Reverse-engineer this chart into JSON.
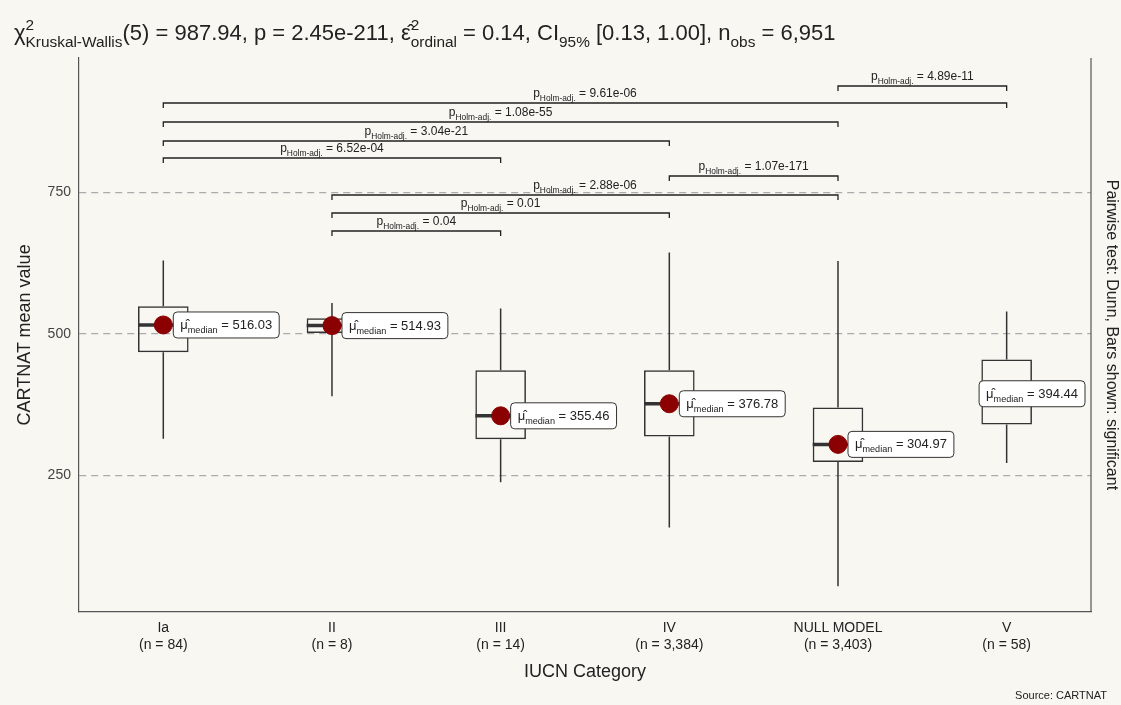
{
  "chart_data": {
    "type": "box",
    "title": "χ$^{2}$$_{Kruskal-Wallis}$(5) = 987.94, p = 2.45e-211, ε̂$^{2}$$_{ordinal}$ = 0.14, CI$_{95%}$ [0.13, 1.00], n$_{obs}$ = 6,951",
    "xlabel": "IUCN Category",
    "ylabel": "CARTNAT mean value",
    "categories": [
      "Ia\n(n = 84)",
      "II\n(n = 8)",
      "III\n(n = 14)",
      "IV\n(n = 3,384)",
      "NULL MODEL\n(n = 3,403)",
      "V\n(n = 58)"
    ],
    "series": [
      {
        "type": "box",
        "color": "#333333",
        "boxes": [
          {
            "low": 315,
            "q1": 468,
            "median": 516.03,
            "q3": 549,
            "high": 630
          },
          {
            "low": 390,
            "q1": 502,
            "median": 514.93,
            "q3": 528,
            "high": 555
          },
          {
            "low": 238,
            "q1": 314,
            "median": 355.46,
            "q3": 436,
            "high": 545
          },
          {
            "low": 158,
            "q1": 319,
            "median": 376.78,
            "q3": 436,
            "high": 644
          },
          {
            "low": 54,
            "q1": 274,
            "median": 304.97,
            "q3": 370,
            "high": 629
          },
          {
            "low": 272,
            "q1": 340,
            "median": 394.44,
            "q3": 455,
            "high": 540
          }
        ]
      },
      {
        "type": "scatter",
        "color": "#8b0000",
        "x": [
          "Ia\n(n = 84)",
          "II\n(n = 8)",
          "III\n(n = 14)",
          "IV\n(n = 3,384)",
          "NULL MODEL\n(n = 3,403)",
          "V\n(n = 58)"
        ],
        "values": [
          516.03,
          514.93,
          355.46,
          376.78,
          304.97,
          null
        ]
      }
    ],
    "ylim": [
      9,
      988
    ],
    "yticks": [
      250,
      500,
      750
    ],
    "grid": "y",
    "legend": false,
    "marker": "circle",
    "annotations": [
      "p$_{Holm-adj.}$ = 9.61e-06",
      "p$_{Holm-adj.}$ = 4.89e-11",
      "p$_{Holm-adj.}$ = 1.08e-55",
      "p$_{Holm-adj.}$ = 3.04e-21",
      "p$_{Holm-adj.}$ = 6.52e-04",
      "p$_{Holm-adj.}$ = 1.07e-171",
      "p$_{Holm-adj.}$ = 2.88e-06",
      "p$_{Holm-adj.}$ = 0.01",
      "p$_{Holm-adj.}$ = 0.04",
      "Pairwise test: Dunn, Bars shown: significant",
      "Source: CARTNAT",
      {
        "text": "μ̂$_{median}$ = 516.03",
        "x": "Ia\n(n = 84)",
        "y": 516.03
      },
      {
        "text": "μ̂$_{median}$ = 514.93",
        "x": "II\n(n = 8)",
        "y": 514.93
      },
      {
        "text": "μ̂$_{median}$ = 355.46",
        "x": "III\n(n = 14)",
        "y": 355.46
      },
      {
        "text": "μ̂$_{median}$ = 376.78",
        "x": "IV\n(n = 3,384)",
        "y": 376.78
      },
      {
        "text": "μ̂$_{median}$ = 304.97",
        "x": "NULL MODEL\n(n = 3,403)",
        "y": 304.97
      },
      {
        "text": "μ̂$_{median}$ = 394.44",
        "x": "V\n(n = 58)",
        "y": 394.44
      }
    ]
  }
}
